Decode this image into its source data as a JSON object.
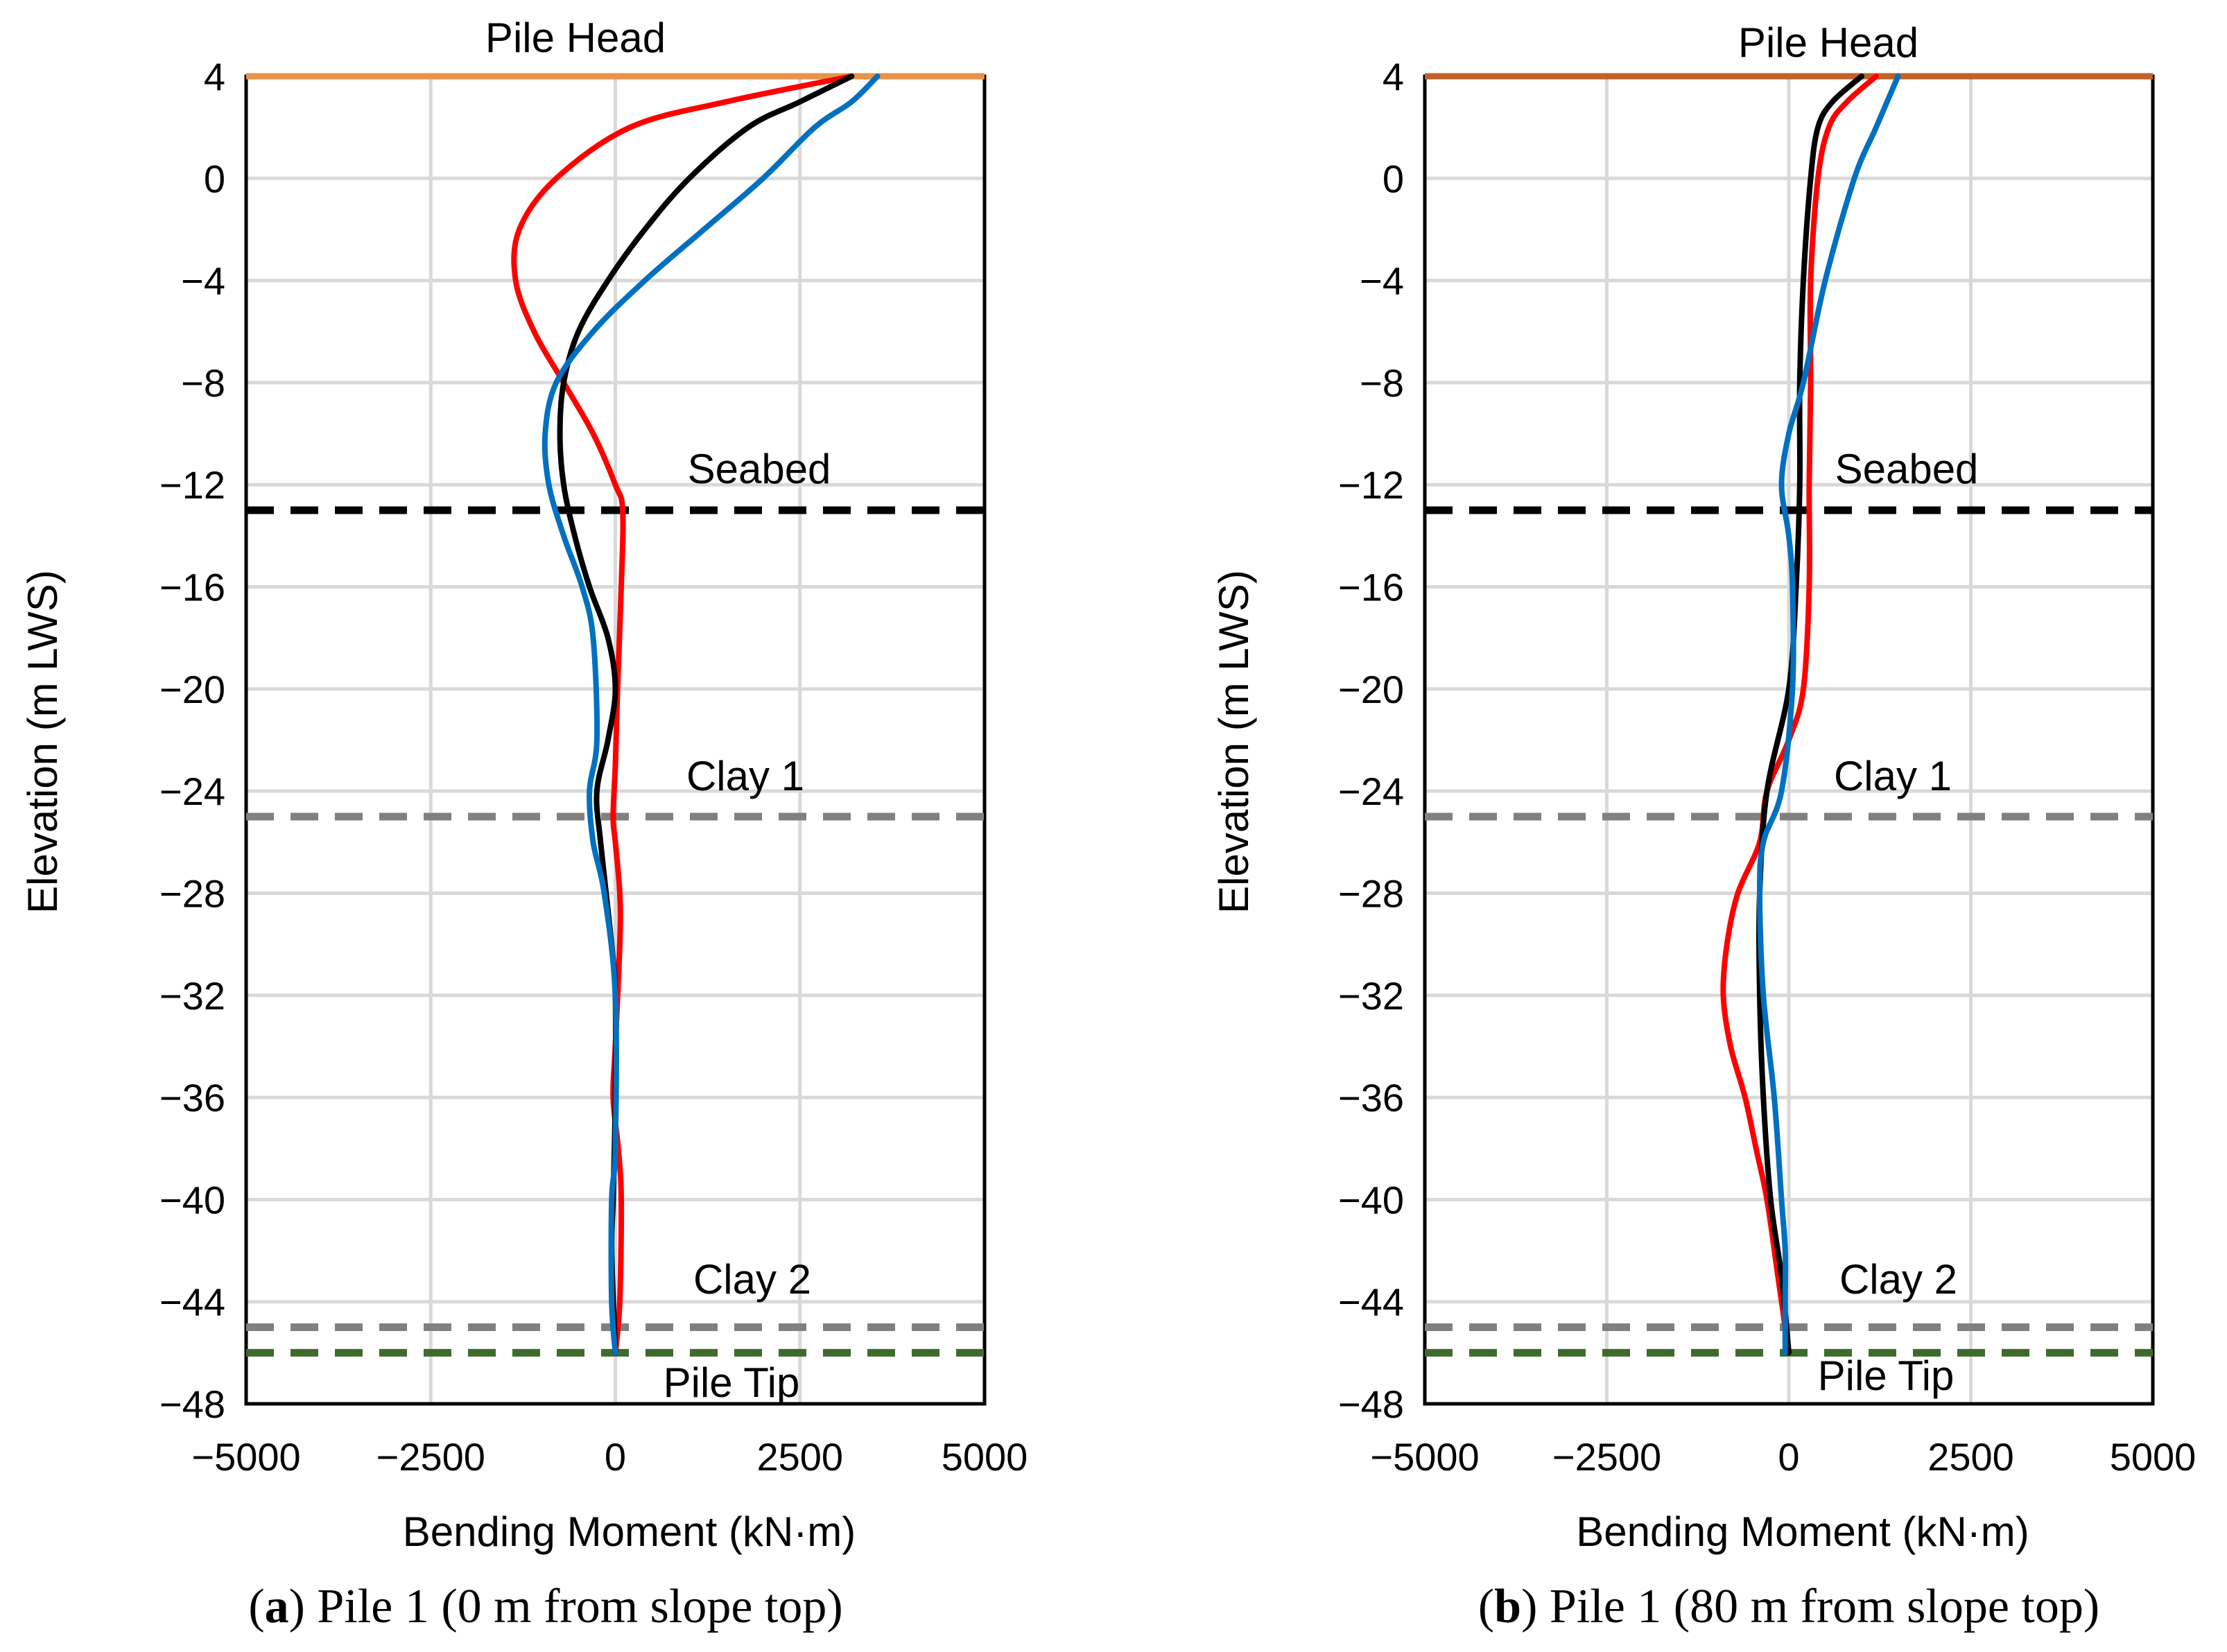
{
  "chart_data": [
    {
      "type": "line",
      "caption": {
        "open": "(",
        "letter": "a",
        "rest": ") Pile 1 (0 m from slope top)"
      },
      "xlabel": "Bending Moment (kN·m)",
      "ylabel": "Elevation (m LWS)",
      "xlim": [
        -5000,
        5000
      ],
      "ylim": [
        -48,
        4
      ],
      "xticks": [
        -5000,
        -2500,
        0,
        2500,
        5000
      ],
      "xtick_labels": [
        "−5000",
        "−2500",
        "0",
        "2500",
        "5000"
      ],
      "yticks": [
        4,
        0,
        -4,
        -8,
        -12,
        -16,
        -20,
        -24,
        -28,
        -32,
        -36,
        -40,
        -44,
        -48
      ],
      "ytick_labels": [
        "4",
        "0",
        "−4",
        "−8",
        "−12",
        "−16",
        "−20",
        "−24",
        "−28",
        "−32",
        "−36",
        "−40",
        "−44",
        "−48"
      ],
      "grid": true,
      "levels": [
        {
          "name": "Pile Head",
          "y": 4,
          "color": "#E8934A",
          "style": "solid"
        },
        {
          "name": "Seabed",
          "y": -13,
          "color": "#000000",
          "style": "dashed"
        },
        {
          "name": "Clay 1",
          "y": -25,
          "color": "#808080",
          "style": "dashed"
        },
        {
          "name": "Clay 2",
          "y": -45,
          "color": "#808080",
          "style": "dashed"
        },
        {
          "name": "Pile Tip",
          "y": -46,
          "color": "#3E6B2C",
          "style": "dashed"
        }
      ],
      "series": [
        {
          "color": "#FF0000",
          "x": [
            3200,
            1500,
            200,
            -800,
            -1300,
            -1350,
            -1100,
            -700,
            -300,
            0,
            100,
            80,
            30,
            0,
            -30,
            0,
            60,
            60,
            0,
            -30,
            40,
            80,
            60,
            0
          ],
          "y": [
            4,
            3,
            2,
            0,
            -2,
            -4,
            -6,
            -8,
            -10,
            -12,
            -13,
            -16,
            -20,
            -23,
            -25,
            -26,
            -28,
            -30,
            -34,
            -36,
            -38,
            -40,
            -44,
            -46
          ]
        },
        {
          "color": "#000000",
          "x": [
            3200,
            2500,
            1800,
            1000,
            400,
            -100,
            -500,
            -700,
            -750,
            -700,
            -550,
            -350,
            -100,
            0,
            -100,
            -250,
            -200,
            -50,
            0,
            0,
            -30,
            -50,
            0
          ],
          "y": [
            4,
            3,
            2,
            0,
            -2,
            -4,
            -6,
            -8,
            -10,
            -12,
            -14,
            -16,
            -18,
            -20,
            -22,
            -24,
            -26,
            -30,
            -32,
            -36,
            -40,
            -42,
            -46
          ]
        },
        {
          "color": "#0070C0",
          "x": [
            3550,
            3200,
            2700,
            2000,
            1200,
            400,
            -300,
            -800,
            -950,
            -900,
            -700,
            -450,
            -300,
            -250,
            -350,
            -300,
            -150,
            0,
            0,
            -50,
            -50,
            0
          ],
          "y": [
            4,
            3,
            2,
            0,
            -2,
            -4,
            -6,
            -8,
            -10,
            -12,
            -14,
            -16,
            -18,
            -22,
            -24,
            -26,
            -28,
            -32,
            -38,
            -40,
            -44,
            -46
          ]
        }
      ]
    },
    {
      "type": "line",
      "caption": {
        "open": "(",
        "letter": "b",
        "rest": ") Pile 1 (80 m from slope top)"
      },
      "xlabel": "Bending Moment (kN·m)",
      "ylabel": "Elevation (m LWS)",
      "xlim": [
        -5000,
        5000
      ],
      "ylim": [
        -48,
        4
      ],
      "xticks": [
        -5000,
        -2500,
        0,
        2500,
        5000
      ],
      "xtick_labels": [
        "−5000",
        "−2500",
        "0",
        "2500",
        "5000"
      ],
      "yticks": [
        4,
        0,
        -4,
        -8,
        -12,
        -16,
        -20,
        -24,
        -28,
        -32,
        -36,
        -40,
        -44,
        -48
      ],
      "ytick_labels": [
        "4",
        "0",
        "−4",
        "−8",
        "−12",
        "−16",
        "−20",
        "−24",
        "−28",
        "−32",
        "−36",
        "−40",
        "−44",
        "−48"
      ],
      "grid": true,
      "levels": [
        {
          "name": "Pile Head",
          "y": 4,
          "color": "#C0622A",
          "style": "solid"
        },
        {
          "name": "Seabed",
          "y": -13,
          "color": "#000000",
          "style": "dashed"
        },
        {
          "name": "Clay 1",
          "y": -25,
          "color": "#808080",
          "style": "dashed"
        },
        {
          "name": "Clay 2",
          "y": -45,
          "color": "#808080",
          "style": "dashed"
        },
        {
          "name": "Pile Tip",
          "y": -46,
          "color": "#3E6B2C",
          "style": "dashed"
        }
      ],
      "series": [
        {
          "color": "#FF0000",
          "x": [
            1200,
            800,
            550,
            400,
            300,
            300,
            280,
            280,
            200,
            0,
            -300,
            -400,
            -700,
            -850,
            -900,
            -800,
            -600,
            -450,
            -300,
            -150,
            0
          ],
          "y": [
            4,
            3,
            2,
            0,
            -4,
            -8,
            -12,
            -16,
            -20,
            -22,
            -24,
            -26,
            -28,
            -30,
            -32,
            -34,
            -36,
            -38,
            -40,
            -43,
            -46
          ]
        },
        {
          "color": "#000000",
          "x": [
            1000,
            600,
            400,
            300,
            200,
            150,
            150,
            100,
            0,
            -300,
            -400,
            -400,
            -350,
            -250,
            -100,
            0
          ],
          "y": [
            4,
            3,
            2,
            0,
            -4,
            -8,
            -12,
            -16,
            -20,
            -24,
            -28,
            -32,
            -36,
            -40,
            -43,
            -46
          ]
        },
        {
          "color": "#0070C0",
          "x": [
            1500,
            1200,
            900,
            500,
            200,
            0,
            -100,
            0,
            50,
            50,
            -100,
            -350,
            -400,
            -350,
            -200,
            -100,
            -50,
            -50,
            -50
          ],
          "y": [
            4,
            2,
            0,
            -4,
            -8,
            -10,
            -12,
            -14,
            -16,
            -20,
            -24,
            -26,
            -28,
            -32,
            -36,
            -40,
            -42,
            -44,
            -46
          ]
        }
      ]
    }
  ]
}
